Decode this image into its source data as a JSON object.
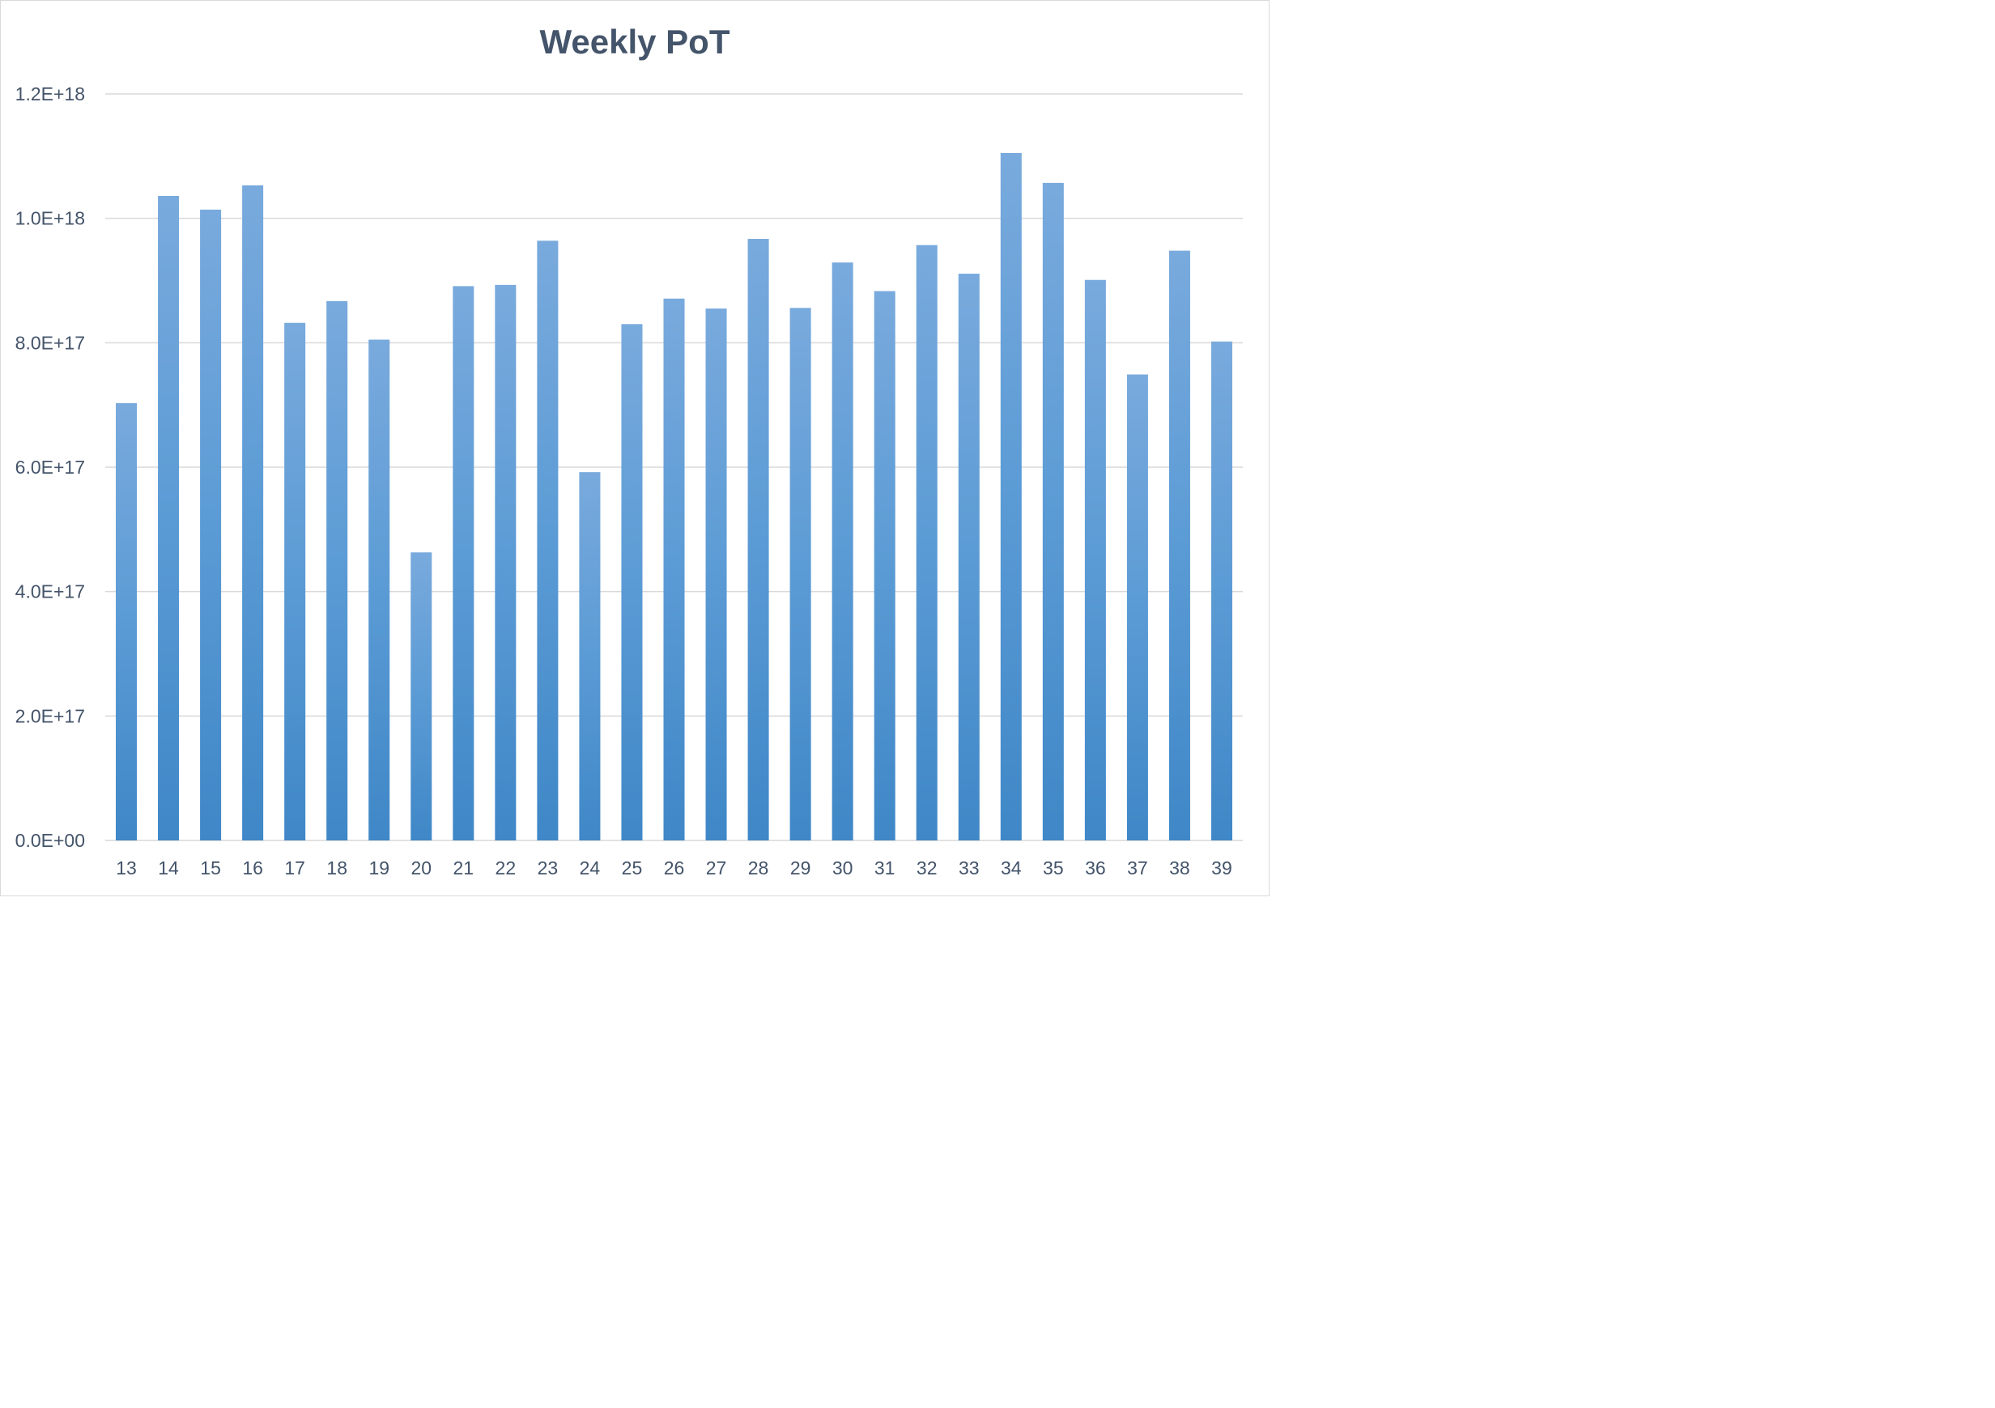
{
  "chart_data": {
    "type": "bar",
    "title": "Weekly PoT",
    "xlabel": "",
    "ylabel": "",
    "ylim": [
      0,
      1.2e+18
    ],
    "yticks": [
      0,
      2e+17,
      4e+17,
      6e+17,
      8e+17,
      1e+18,
      1.2e+18
    ],
    "ytick_labels": [
      "0.0E+00",
      "2.0E+17",
      "4.0E+17",
      "6.0E+17",
      "8.0E+17",
      "1.0E+18",
      "1.2E+18"
    ],
    "grid": true,
    "legend": "none",
    "bar_color_top": "#79aadd",
    "bar_color_mid": "#5b9bd5",
    "bar_color_bottom": "#3f87c7",
    "categories": [
      "13",
      "14",
      "15",
      "16",
      "17",
      "18",
      "19",
      "20",
      "21",
      "22",
      "23",
      "24",
      "25",
      "26",
      "27",
      "28",
      "29",
      "30",
      "31",
      "32",
      "33",
      "34",
      "35",
      "36",
      "37",
      "38",
      "39"
    ],
    "values": [
      7.03e+17,
      1.036e+18,
      1.014e+18,
      1.053e+18,
      8.32e+17,
      8.67e+17,
      8.05e+17,
      4.63e+17,
      8.91e+17,
      8.93e+17,
      9.64e+17,
      5.92e+17,
      8.3e+17,
      8.71e+17,
      8.55e+17,
      9.67e+17,
      8.56e+17,
      9.29e+17,
      8.83e+17,
      9.57e+17,
      9.11e+17,
      1.105e+18,
      1.057e+18,
      9.01e+17,
      7.49e+17,
      9.48e+17,
      8.02e+17
    ]
  }
}
